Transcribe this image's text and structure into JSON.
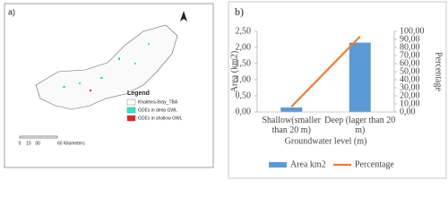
{
  "map": {
    "label": "a)",
    "legend_title": "Legend",
    "legend_items": [
      {
        "name": "Khakhea-Bray_TBA",
        "color": "#ffffff"
      },
      {
        "name": "GDEs in deep GWL",
        "color": "#2ee8c8"
      },
      {
        "name": "GDEs in shallow GWL",
        "color": "#e8232a"
      }
    ],
    "scale_labels": [
      "0",
      "15",
      "30",
      "60 Kilometers"
    ]
  },
  "chart_data": {
    "type": "bar",
    "label": "b)",
    "categories": [
      "Shallow(smaller than 20 m)",
      "Deep (lager than 20 m)"
    ],
    "series": [
      {
        "name": "Area km2",
        "color": "#5b9bd5",
        "values": [
          0.14,
          2.15
        ]
      },
      {
        "name": "Percentage",
        "color": "#ed7d31",
        "type": "line",
        "axis": "y2",
        "values": [
          6.5,
          93.5
        ]
      }
    ],
    "y_label": "Area (km2)",
    "y2_label": "Percentage",
    "x_label": "Groundwater level (m)",
    "ylim": [
      0,
      2.5
    ],
    "yticks": [
      {
        "value": 0,
        "label": "0,00"
      },
      {
        "value": 0.5,
        "label": "0,50"
      },
      {
        "value": 1,
        "label": "1,00"
      },
      {
        "value": 1.5,
        "label": "1,50"
      },
      {
        "value": 2,
        "label": "2,00"
      },
      {
        "value": 2.5,
        "label": "2,50"
      }
    ],
    "y2lim": [
      0,
      100
    ],
    "y2ticks": [
      {
        "value": 0,
        "label": "0,00"
      },
      {
        "value": 10,
        "label": "10,00"
      },
      {
        "value": 20,
        "label": "20,00"
      },
      {
        "value": 30,
        "label": "30,00"
      },
      {
        "value": 40,
        "label": "40,00"
      },
      {
        "value": 50,
        "label": "50,00"
      },
      {
        "value": 60,
        "label": "60,00"
      },
      {
        "value": 70,
        "label": "70,00"
      },
      {
        "value": 80,
        "label": "80,00"
      },
      {
        "value": 90,
        "label": "90,00"
      },
      {
        "value": 100,
        "label": "100,00"
      }
    ],
    "legend": "bottom"
  }
}
